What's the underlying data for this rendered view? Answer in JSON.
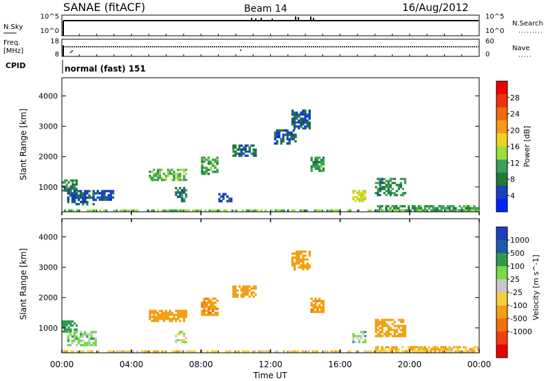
{
  "header": {
    "station": "SANAE (fitACF)",
    "beam": "Beam 14",
    "date": "16/Aug/2012"
  },
  "panels": {
    "nsky": {
      "label": "N.Sky",
      "left_ticks": [
        "10^5",
        "10^0"
      ],
      "right_ticks": [
        "10^5",
        "10^0"
      ],
      "right_label": "N.Search"
    },
    "freq": {
      "label_line1": "Freq.",
      "label_line2": "[MHz]",
      "left_ticks": [
        "18",
        "8"
      ],
      "right_ticks": [
        "60",
        "0"
      ],
      "right_label": "Nave"
    },
    "cpid": {
      "label": "CPID",
      "text": "normal (fast) 151"
    }
  },
  "x_tick_labels": [
    "00:00",
    "04:00",
    "08:00",
    "12:00",
    "16:00",
    "20:00",
    "00:00"
  ],
  "colors": {
    "power": [
      "#0024ff",
      "#1a3fbf",
      "#1f7a3a",
      "#3ea05a",
      "#9adf3c",
      "#f2d21e",
      "#f59a16",
      "#f26a10",
      "#f23010",
      "#ee0000"
    ],
    "velocity": [
      "#ee0000",
      "#f04010",
      "#f07010",
      "#f2a012",
      "#f4d040",
      "#c8c8c8",
      "#78d84a",
      "#2f9a52",
      "#1f5ab0",
      "#1a3fbf"
    ]
  },
  "chart_data": [
    {
      "type": "heatmap",
      "title": "",
      "xlabel": "",
      "ylabel": "Slant Range [km]",
      "x_range_hours": [
        0,
        24
      ],
      "ylim": [
        180,
        4600
      ],
      "y_tick_labels": [
        "1000",
        "2000",
        "3000",
        "4000"
      ],
      "y_ticks": [
        1000,
        2000,
        3000,
        4000
      ],
      "colorbar": {
        "label": "Power [dB]",
        "tick_labels": [
          "4",
          "8",
          "12",
          "16",
          "20",
          "24",
          "28"
        ]
      },
      "patches": [
        {
          "t": [
            0.0,
            0.9
          ],
          "r": [
            850,
            1250
          ],
          "v": 9
        },
        {
          "t": [
            0.3,
            2.0
          ],
          "r": [
            400,
            900
          ],
          "v": 6
        },
        {
          "t": [
            2.0,
            3.0
          ],
          "r": [
            550,
            900
          ],
          "v": 5
        },
        {
          "t": [
            5.0,
            7.2
          ],
          "r": [
            1200,
            1600
          ],
          "v": 12
        },
        {
          "t": [
            6.5,
            7.2
          ],
          "r": [
            500,
            1000
          ],
          "v": 8
        },
        {
          "t": [
            8.0,
            9.0
          ],
          "r": [
            1400,
            2000
          ],
          "v": 11
        },
        {
          "t": [
            9.0,
            9.8
          ],
          "r": [
            500,
            800
          ],
          "v": 5
        },
        {
          "t": [
            9.8,
            11.2
          ],
          "r": [
            2000,
            2400
          ],
          "v": 7
        },
        {
          "t": [
            12.2,
            13.5
          ],
          "r": [
            2400,
            2900
          ],
          "v": 6
        },
        {
          "t": [
            13.2,
            14.3
          ],
          "r": [
            2900,
            3550
          ],
          "v": 6
        },
        {
          "t": [
            14.3,
            15.1
          ],
          "r": [
            1500,
            2000
          ],
          "v": 10
        },
        {
          "t": [
            16.7,
            17.5
          ],
          "r": [
            500,
            900
          ],
          "v": 16
        },
        {
          "t": [
            18.0,
            19.8
          ],
          "r": [
            700,
            1300
          ],
          "v": 9
        },
        {
          "t": [
            18.0,
            24.0
          ],
          "r": [
            200,
            400
          ],
          "v": 10
        },
        {
          "t": [
            0.0,
            24.0
          ],
          "r": [
            180,
            260
          ],
          "v": 13
        }
      ]
    },
    {
      "type": "heatmap",
      "title": "",
      "xlabel": "Time UT",
      "ylabel": "Slant Range [km]",
      "x_range_hours": [
        0,
        24
      ],
      "ylim": [
        180,
        4600
      ],
      "y_tick_labels": [
        "1000",
        "2000",
        "3000",
        "4000"
      ],
      "y_ticks": [
        1000,
        2000,
        3000,
        4000
      ],
      "colorbar": {
        "label": "Velocity [m s^-1]",
        "tick_labels": [
          "1000",
          "500",
          "100",
          "25",
          "-25",
          "-100",
          "-500",
          "-1000"
        ]
      },
      "patches": [
        {
          "t": [
            0.0,
            0.9
          ],
          "r": [
            850,
            1250
          ],
          "v": 200
        },
        {
          "t": [
            0.3,
            2.0
          ],
          "r": [
            400,
            900
          ],
          "v": 60
        },
        {
          "t": [
            5.0,
            7.2
          ],
          "r": [
            1200,
            1600
          ],
          "v": -400
        },
        {
          "t": [
            6.5,
            7.2
          ],
          "r": [
            500,
            900
          ],
          "v": 15
        },
        {
          "t": [
            8.0,
            9.0
          ],
          "r": [
            1400,
            2000
          ],
          "v": -450
        },
        {
          "t": [
            9.8,
            11.2
          ],
          "r": [
            2000,
            2400
          ],
          "v": -180
        },
        {
          "t": [
            13.2,
            14.3
          ],
          "r": [
            2900,
            3550
          ],
          "v": -220
        },
        {
          "t": [
            14.3,
            15.1
          ],
          "r": [
            1500,
            2000
          ],
          "v": -450
        },
        {
          "t": [
            16.7,
            17.5
          ],
          "r": [
            500,
            900
          ],
          "v": 50
        },
        {
          "t": [
            18.0,
            19.8
          ],
          "r": [
            700,
            1300
          ],
          "v": -300
        },
        {
          "t": [
            18.0,
            24.0
          ],
          "r": [
            200,
            400
          ],
          "v": -120
        },
        {
          "t": [
            0.0,
            24.0
          ],
          "r": [
            180,
            260
          ],
          "v": -60
        }
      ]
    }
  ]
}
